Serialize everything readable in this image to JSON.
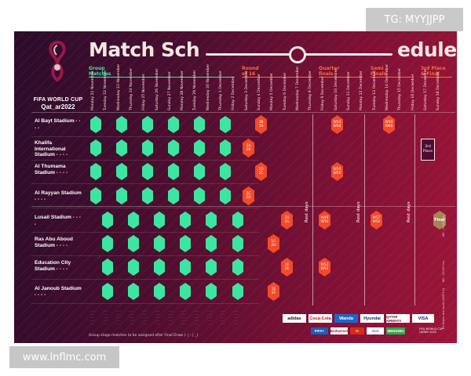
{
  "watermarks": {
    "top_right": "TG: MYYJJPP",
    "bottom_left": "www.lnflmc.com"
  },
  "logo": {
    "line1": "FIFA WORLD CUP",
    "line2": "Qat_ar2022"
  },
  "title": {
    "left": "Match Sch",
    "right": "edule",
    "dots": "• • • • • • • •"
  },
  "stages": {
    "group": [
      "Group",
      "Matches"
    ],
    "r16": [
      "Round",
      "of 16"
    ],
    "qf": [
      "Quarter",
      "finals"
    ],
    "sf": [
      "Semi",
      "Finals"
    ],
    "final": [
      "3rd Place",
      "& Final"
    ]
  },
  "dates": [
    "Monday 21 November",
    "Tuesday 22 November",
    "Wednesday 23 November",
    "Thursday 24 November",
    "Friday 25 November",
    "Saturday 26 November",
    "Sunday 27 November",
    "Monday 28 November",
    "Tuesday 29 November",
    "Wednesday 30 November",
    "Thursday 1 December",
    "Friday 2 December",
    "Saturday 3 December",
    "Sunday 4 December",
    "Monday 5 December",
    "Tuesday 6 December",
    "Wednesday 7 December",
    "Thursday 8 December",
    "Friday 9 December",
    "Saturday 10 December",
    "Sunday 11 December",
    "Monday 12 December",
    "Tuesday 13 December",
    "Wednesday 14 December",
    "Thursday 15 December",
    "Friday 16 December",
    "Saturday 17 December",
    "Sunday 18 December"
  ],
  "venues": [
    "Al Bayt Stadium",
    "Khalifa International Stadium",
    "Al Thumama Stadium",
    "Al Rayyan Stadium",
    "Lusail Stadium",
    "Ras Abu Aboud Stadium",
    "Education City Stadium",
    "Al Janoub Stadium"
  ],
  "venue_dots": "• • • •",
  "knockout": {
    "r1": [
      "1B",
      "2A"
    ],
    "r2": [
      "1A",
      "2B"
    ],
    "r3": [
      "1D",
      "2C"
    ],
    "r4": [
      "1C",
      "2D"
    ],
    "r5a": [
      "1H",
      "2G"
    ],
    "r6a": [
      "1G",
      "2H"
    ],
    "r7": [
      "1F",
      "2E"
    ],
    "r8": [
      "1E",
      "2F"
    ],
    "qf1": [
      "W53",
      "W54"
    ],
    "qf2": [
      "W49",
      "W50"
    ],
    "qf3": [
      "W55",
      "W56"
    ],
    "qf4": [
      "W51",
      "W52"
    ],
    "sf1": [
      "W57",
      "W58"
    ],
    "sf2": [
      "W59",
      "W60"
    ],
    "third": [
      "3rd",
      "Place"
    ],
    "final": "Final"
  },
  "rest_days": [
    "Rest days",
    "Rest days",
    "Rest days"
  ],
  "footnote": "Group stage matches to be assigned after Final Draw (- | - | _)",
  "side_notes": [
    "KO : 18:00 hrs",
    "KO : 22:00 hrs",
    "All times are local (GMT+3)"
  ],
  "sponsors": [
    "adidas",
    "Coca-Cola",
    "Wanda",
    "Hyundai",
    "QATAR AIRWAYS",
    "VISA"
  ],
  "sponsors_small": [
    "FIFA+",
    "Budweiser",
    "M",
    "vivo",
    "MENGNIU"
  ],
  "logos_tag": [
    "FIFA WORLD CUP",
    "QATAR 2022"
  ],
  "colors": {
    "group": "#3ce6a0",
    "knockout": "#f34a2a",
    "final": "#a68552",
    "title": "#f3e7e2"
  }
}
